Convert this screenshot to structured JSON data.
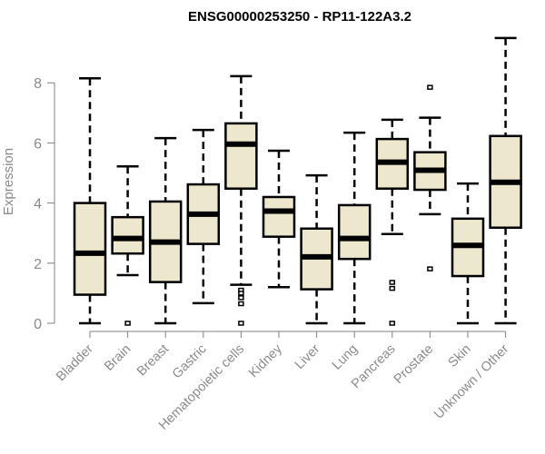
{
  "chart_data": {
    "type": "boxplot",
    "title": "ENSG00000253250 - RP11-122A3.2",
    "xlabel": "",
    "ylabel": "Expression",
    "ylim": [
      0,
      9.6
    ],
    "yticks": [
      0,
      2,
      4,
      6,
      8
    ],
    "grid": false,
    "box_color": "#ede7cd",
    "categories": [
      "Bladder",
      "Brain",
      "Breast",
      "Gastric",
      "Hematopoietic cells",
      "Kidney",
      "Liver",
      "Lung",
      "Pancreas",
      "Prostate",
      "Skin",
      "Unknown / Other"
    ],
    "boxes": [
      {
        "low": 0,
        "q1": 0.95,
        "median": 2.33,
        "q3": 4.0,
        "high": 8.15,
        "outliers": []
      },
      {
        "low": 1.6,
        "q1": 2.32,
        "median": 2.82,
        "q3": 3.53,
        "high": 5.22,
        "outliers": [
          0
        ]
      },
      {
        "low": 0,
        "q1": 1.37,
        "median": 2.7,
        "q3": 4.05,
        "high": 6.16,
        "outliers": []
      },
      {
        "low": 0.67,
        "q1": 2.64,
        "median": 3.63,
        "q3": 4.62,
        "high": 6.43,
        "outliers": []
      },
      {
        "low": 1.28,
        "q1": 4.48,
        "median": 5.96,
        "q3": 6.65,
        "high": 8.22,
        "outliers": [
          1.1,
          1.0,
          0.85,
          0.65,
          0
        ]
      },
      {
        "low": 1.2,
        "q1": 2.88,
        "median": 3.73,
        "q3": 4.2,
        "high": 5.74,
        "outliers": []
      },
      {
        "low": 0,
        "q1": 1.13,
        "median": 2.21,
        "q3": 3.15,
        "high": 4.92,
        "outliers": []
      },
      {
        "low": 0,
        "q1": 2.14,
        "median": 2.82,
        "q3": 3.93,
        "high": 6.34,
        "outliers": []
      },
      {
        "low": 2.97,
        "q1": 4.48,
        "median": 5.36,
        "q3": 6.13,
        "high": 6.77,
        "outliers": [
          1.36,
          1.16,
          0
        ]
      },
      {
        "low": 3.63,
        "q1": 4.44,
        "median": 5.09,
        "q3": 5.69,
        "high": 6.84,
        "outliers": [
          7.85,
          1.81
        ]
      },
      {
        "low": 0,
        "q1": 1.57,
        "median": 2.59,
        "q3": 3.48,
        "high": 4.65,
        "outliers": []
      },
      {
        "low": 0,
        "q1": 3.18,
        "median": 4.69,
        "q3": 6.23,
        "high": 9.49,
        "outliers": []
      }
    ]
  }
}
